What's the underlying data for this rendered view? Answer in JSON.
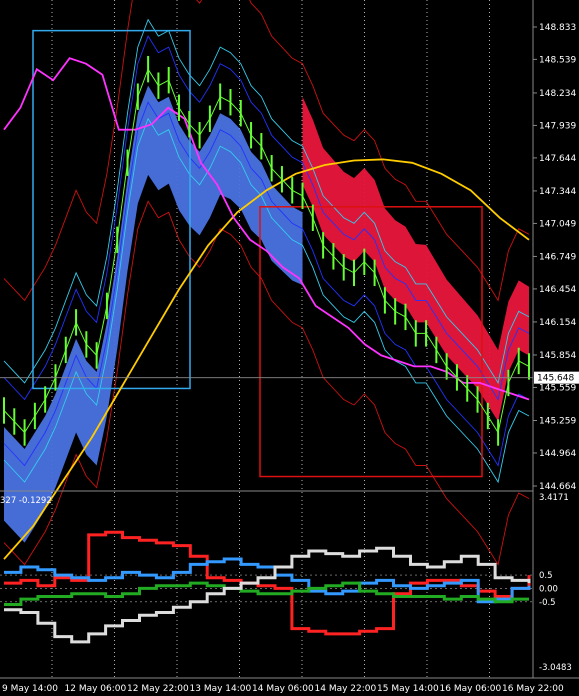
{
  "chart_data": {
    "type": "line",
    "title": "",
    "main_panel": {
      "y_ticks": [
        "148.833",
        "148.539",
        "148.234",
        "147.939",
        "147.644",
        "147.344",
        "147.049",
        "146.749",
        "146.454",
        "146.154",
        "145.854",
        "145.559",
        "145.259",
        "144.964",
        "144.664"
      ],
      "y_tick_values": [
        148.833,
        148.539,
        148.234,
        147.939,
        147.644,
        147.344,
        147.049,
        146.749,
        146.454,
        146.154,
        145.854,
        145.559,
        145.259,
        144.964,
        144.664
      ],
      "ylim": [
        144.664,
        148.833
      ],
      "current_price": "145.648",
      "current_price_value": 145.648,
      "price_series": {
        "name": "",
        "color": "#66ff33",
        "values": [
          145.35,
          145.25,
          145.15,
          145.3,
          145.45,
          145.65,
          145.9,
          146.15,
          145.95,
          145.85,
          146.3,
          146.9,
          147.6,
          148.2,
          148.45,
          148.3,
          148.35,
          148.1,
          147.95,
          147.85,
          148.0,
          148.2,
          148.15,
          148.05,
          147.85,
          147.75,
          147.55,
          147.45,
          147.35,
          147.3,
          147.1,
          146.85,
          146.75,
          146.65,
          146.6,
          146.7,
          146.6,
          146.35,
          146.25,
          146.2,
          146.05,
          146.05,
          145.9,
          145.75,
          145.65,
          145.55,
          145.45,
          145.3,
          145.15,
          145.6,
          145.8,
          145.75
        ]
      },
      "magenta_series": {
        "name": "",
        "color": "#ff33ff",
        "values": [
          147.9,
          148.1,
          148.45,
          148.35,
          148.55,
          148.5,
          148.4,
          147.9,
          147.9,
          147.95,
          148.1,
          148.0,
          147.6,
          147.4,
          147.1,
          146.9,
          146.8,
          146.65,
          146.55,
          146.3,
          146.2,
          146.1,
          145.95,
          145.85,
          145.8,
          145.75,
          145.75,
          145.7,
          145.6,
          145.6,
          145.55,
          145.5,
          145.45
        ]
      },
      "yellow_ma": {
        "name": "",
        "color": "#ffcc00",
        "values": [
          144.0,
          144.3,
          144.7,
          145.1,
          145.55,
          146.0,
          146.45,
          146.85,
          147.15,
          147.35,
          147.5,
          147.58,
          147.62,
          147.63,
          147.6,
          147.5,
          147.35,
          147.1,
          146.9
        ]
      },
      "boxes": [
        {
          "color": "#33aaee",
          "from_price": 148.8,
          "to_price": 145.55
        },
        {
          "color": "#dd1111",
          "from_price": 147.2,
          "to_price": 144.75
        }
      ]
    },
    "sub_panel": {
      "header_text": "327 -0.1292",
      "y_ticks": [
        "3.4171",
        "0.5",
        "0.00",
        "-0.5",
        "-3.0483"
      ],
      "y_tick_values": [
        3.4171,
        0.5,
        0.0,
        -0.5,
        -3.0483
      ],
      "ylim": [
        -3.0483,
        3.4171
      ],
      "series": [
        {
          "name": "",
          "color": "#ff2222",
          "values": [
            0.2,
            0.3,
            0.1,
            0.4,
            0.3,
            2.0,
            2.1,
            1.9,
            1.8,
            1.7,
            1.6,
            1.2,
            0.4,
            0.3,
            0.2,
            0.1,
            0.0,
            -1.5,
            -1.6,
            -1.7,
            -1.7,
            -1.6,
            -1.5,
            -0.2,
            0.2,
            0.3,
            0.3,
            0.1,
            -0.1,
            -0.3,
            0.0,
            0.5
          ]
        },
        {
          "name": "",
          "color": "#3399ff",
          "values": [
            0.6,
            0.8,
            0.7,
            0.5,
            0.4,
            0.3,
            0.4,
            0.6,
            0.5,
            0.4,
            0.6,
            0.9,
            1.0,
            1.1,
            0.9,
            0.8,
            0.5,
            0.3,
            -0.1,
            -0.2,
            -0.1,
            0.2,
            0.3,
            0.1,
            0.0,
            0.1,
            0.2,
            0.3,
            -0.5,
            -0.4,
            0.0,
            0.1
          ]
        },
        {
          "name": "",
          "color": "#22aa22",
          "values": [
            -0.6,
            -0.4,
            -0.3,
            -0.3,
            -0.2,
            -0.2,
            -0.3,
            -0.2,
            0.0,
            0.1,
            0.1,
            0.2,
            0.1,
            0.0,
            -0.1,
            -0.2,
            -0.2,
            -0.1,
            0.0,
            0.1,
            0.2,
            -0.1,
            -0.2,
            -0.3,
            -0.3,
            -0.3,
            -0.4,
            -0.3,
            -0.4,
            -0.5,
            -0.4,
            -0.4
          ]
        },
        {
          "name": "",
          "color": "#dddddd",
          "values": [
            -0.8,
            -0.9,
            -1.3,
            -1.8,
            -2.0,
            -1.7,
            -1.4,
            -1.2,
            -1.0,
            -0.9,
            -0.7,
            -0.5,
            -0.2,
            0.0,
            0.2,
            0.4,
            0.8,
            1.2,
            1.4,
            1.3,
            1.2,
            1.4,
            1.5,
            1.2,
            0.9,
            0.8,
            1.0,
            1.2,
            0.9,
            0.4,
            0.3,
            0.2
          ]
        }
      ]
    },
    "x_labels": [
      "9 May 14:00",
      "12 May 06:00",
      "12 May 22:00",
      "13 May 14:00",
      "14 May 06:00",
      "14 May 22:00",
      "15 May 14:00",
      "16 May 06:00",
      "16 May 22:00"
    ]
  }
}
